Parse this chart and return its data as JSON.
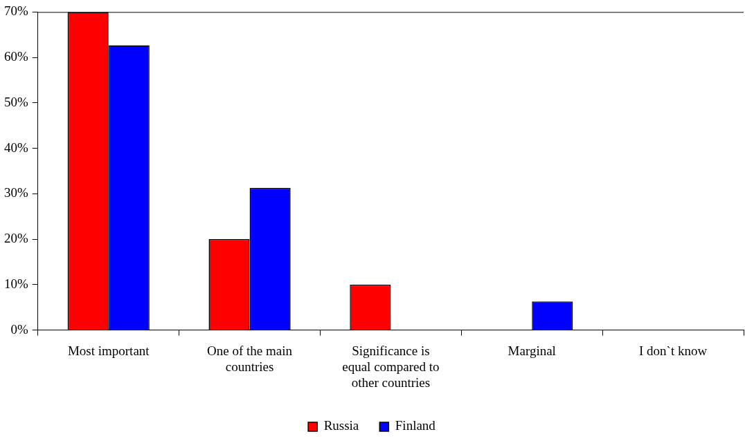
{
  "chart_data": {
    "type": "bar",
    "categories": [
      "Most important",
      "One of the main countries",
      "Significance is equal compared to other countries",
      "Marginal",
      "I don`t know"
    ],
    "series": [
      {
        "name": "Russia",
        "color": "#ff0000",
        "values": [
          70,
          20,
          10,
          0,
          0
        ]
      },
      {
        "name": "Finland",
        "color": "#0000ff",
        "values": [
          62.7,
          31.3,
          0,
          6.3,
          0
        ]
      }
    ],
    "ylim": [
      0,
      70
    ],
    "yticks": [
      {
        "value": 0,
        "label": "0%"
      },
      {
        "value": 10,
        "label": "10%"
      },
      {
        "value": 20,
        "label": "20%"
      },
      {
        "value": 30,
        "label": "30%"
      },
      {
        "value": 40,
        "label": "40%"
      },
      {
        "value": 50,
        "label": "50%"
      },
      {
        "value": 60,
        "label": "60%"
      },
      {
        "value": 70,
        "label": "70%"
      }
    ],
    "grid": false,
    "legend": "bottom"
  }
}
